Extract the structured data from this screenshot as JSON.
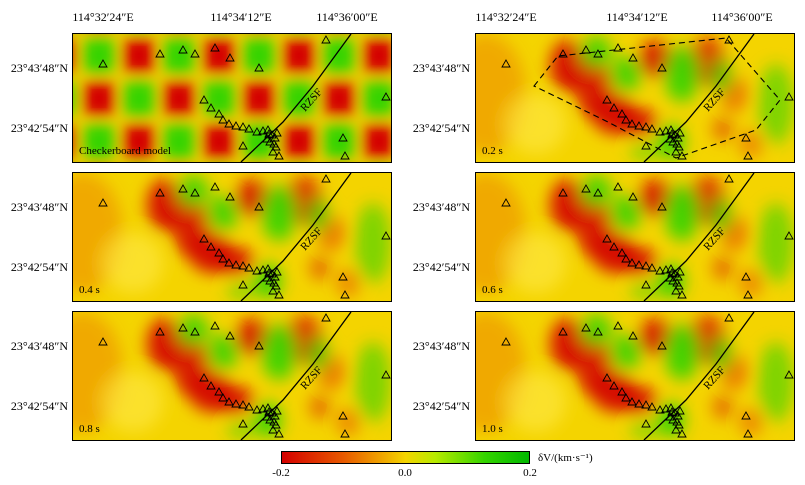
{
  "figure": {
    "lon_labels": [
      {
        "id": "left-1",
        "text": "114°32′24″E"
      },
      {
        "id": "left-2",
        "text": "114°34′12″E"
      },
      {
        "id": "left-3",
        "text": "114°36′00″E"
      },
      {
        "id": "right-1",
        "text": "114°32′24″E"
      },
      {
        "id": "right-2",
        "text": "114°34′12″E"
      },
      {
        "id": "right-3",
        "text": "114°36′00″E"
      }
    ],
    "lat_labels": [
      "23°43′48″N",
      "23°42′54″N"
    ],
    "panels": [
      {
        "label": "Checkerboard model",
        "type": "checker"
      },
      {
        "label": "0.2 s",
        "type": "recovered",
        "outline": true
      },
      {
        "label": "0.4 s",
        "type": "recovered"
      },
      {
        "label": "0.6 s",
        "type": "recovered"
      },
      {
        "label": "0.8 s",
        "type": "recovered"
      },
      {
        "label": "1.0 s",
        "type": "recovered"
      }
    ],
    "fault_label": "RZSF",
    "station_symbol": "triangle-icon",
    "colorbar": {
      "ticks": [
        "-0.2",
        "0.0",
        "0.2"
      ],
      "range": [
        -0.2,
        0.2
      ],
      "unit_label": "δV/(km·s⁻¹)",
      "colors": [
        "#d40000",
        "#e85a00",
        "#f4d400",
        "#b8ea00",
        "#34d400",
        "#00b800"
      ]
    }
  }
}
